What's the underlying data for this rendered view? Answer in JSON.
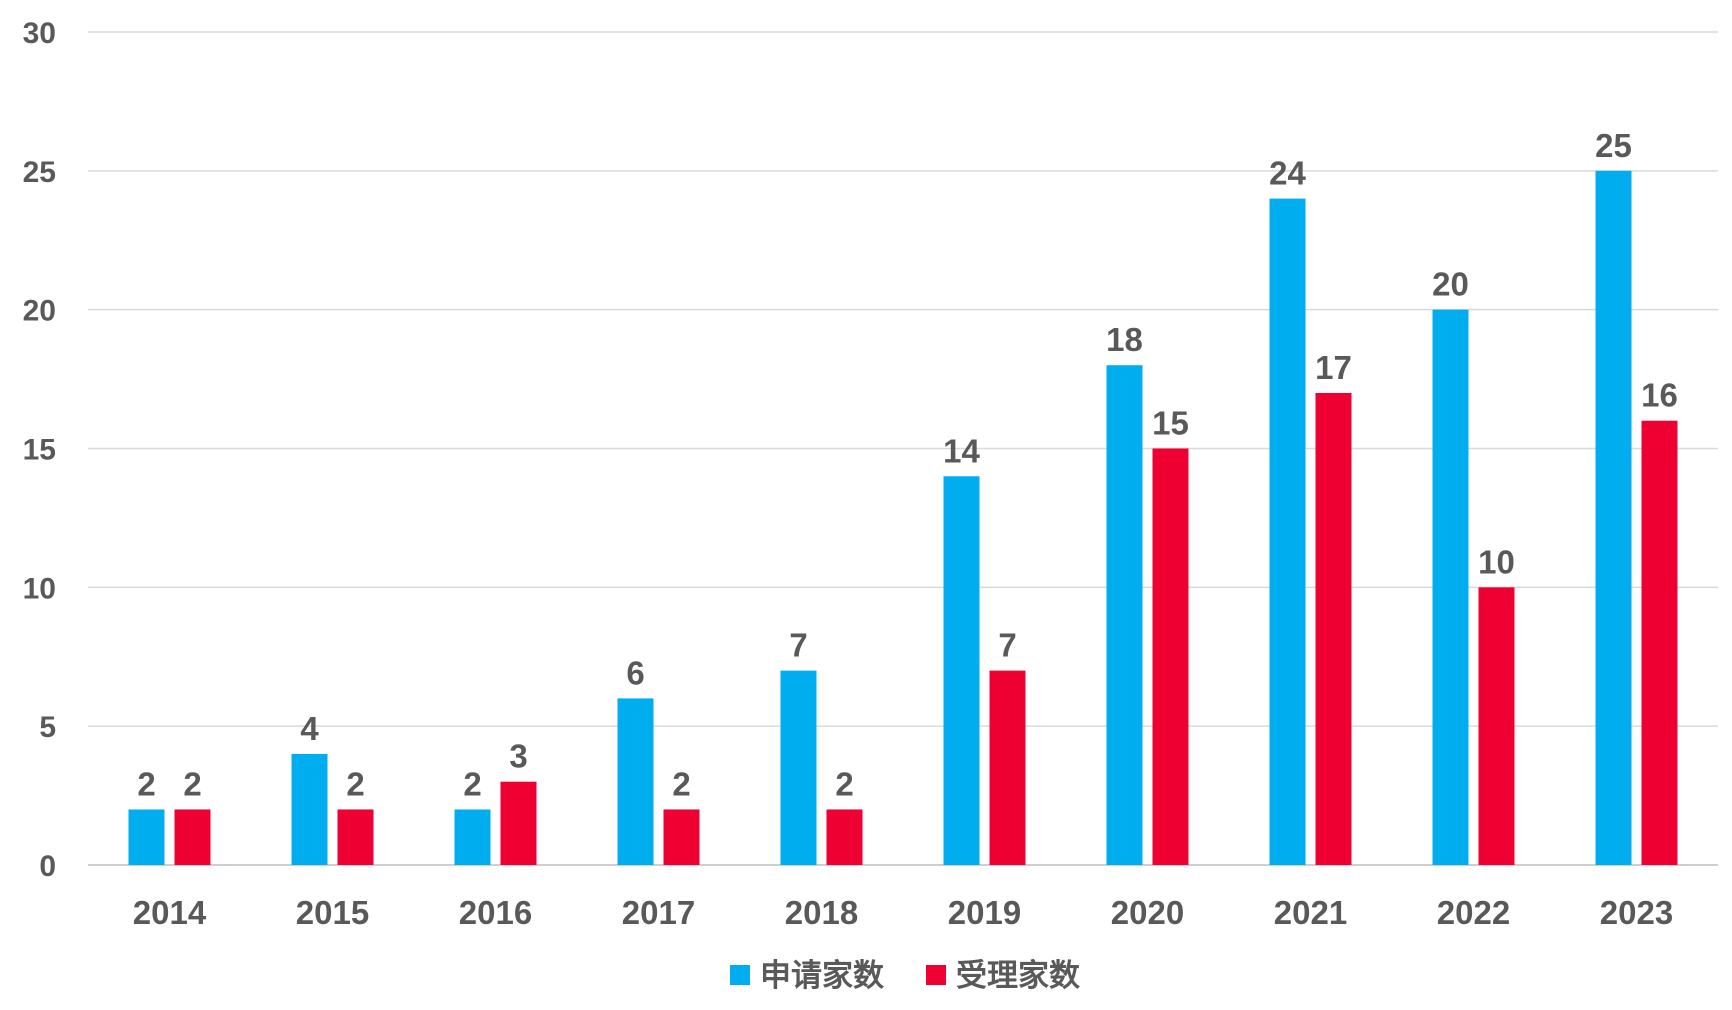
{
  "chart_data": {
    "type": "bar",
    "categories": [
      "2014",
      "2015",
      "2016",
      "2017",
      "2018",
      "2019",
      "2020",
      "2021",
      "2022",
      "2023"
    ],
    "series": [
      {
        "name": "申请家数",
        "color": "#00AEEF",
        "values": [
          2,
          4,
          2,
          6,
          7,
          14,
          18,
          24,
          20,
          25
        ]
      },
      {
        "name": "受理家数",
        "color": "#EE0033",
        "values": [
          2,
          2,
          3,
          2,
          2,
          7,
          15,
          17,
          10,
          16
        ]
      }
    ],
    "yticks": [
      0,
      5,
      10,
      15,
      20,
      25,
      30
    ],
    "ylim": [
      0,
      30
    ],
    "grid": true,
    "legend_position": "bottom-center",
    "data_labels": true,
    "title": "",
    "xlabel": "",
    "ylabel": ""
  }
}
